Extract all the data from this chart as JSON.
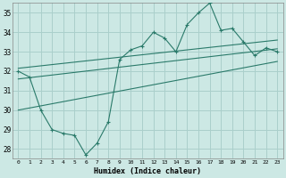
{
  "xlabel": "Humidex (Indice chaleur)",
  "ylabel": "",
  "bg_color": "#cce8e4",
  "grid_color": "#aacfcb",
  "line_color": "#2a7a6a",
  "xlim": [
    -0.5,
    23.5
  ],
  "ylim": [
    27.5,
    35.5
  ],
  "xticks": [
    0,
    1,
    2,
    3,
    4,
    5,
    6,
    7,
    8,
    9,
    10,
    11,
    12,
    13,
    14,
    15,
    16,
    17,
    18,
    19,
    20,
    21,
    22,
    23
  ],
  "yticks": [
    28,
    29,
    30,
    31,
    32,
    33,
    34,
    35
  ],
  "main_x": [
    0,
    1,
    2,
    3,
    4,
    5,
    6,
    7,
    8,
    9,
    10,
    11,
    12,
    13,
    14,
    15,
    16,
    17,
    18,
    19,
    20,
    21,
    22,
    23
  ],
  "main_y": [
    32,
    31.7,
    30.0,
    29.0,
    28.8,
    28.7,
    27.7,
    28.3,
    29.4,
    32.6,
    33.1,
    33.3,
    34.0,
    33.7,
    33.0,
    34.4,
    35.0,
    35.5,
    34.1,
    34.2,
    33.5,
    32.8,
    33.2,
    33.0
  ],
  "upper_line_x": [
    0,
    23
  ],
  "upper_line_y": [
    32.15,
    33.6
  ],
  "middle_line_x": [
    0,
    23
  ],
  "middle_line_y": [
    31.6,
    33.15
  ],
  "lower_line_x": [
    0,
    23
  ],
  "lower_line_y": [
    30.0,
    32.5
  ]
}
